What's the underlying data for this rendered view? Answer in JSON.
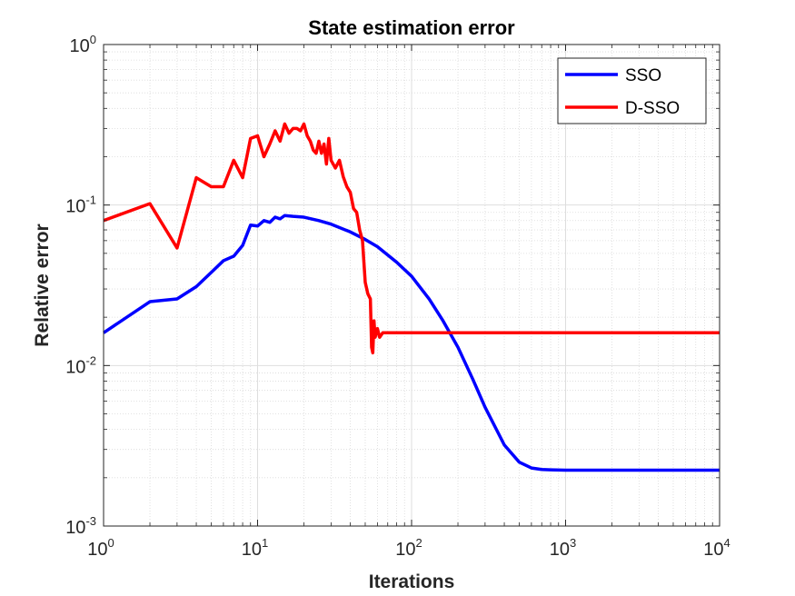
{
  "chart_data": {
    "type": "line",
    "title": "State estimation error",
    "xlabel": "Iterations",
    "ylabel": "Relative error",
    "xscale": "log",
    "yscale": "log",
    "xlim": [
      1,
      10000
    ],
    "ylim": [
      0.001,
      1
    ],
    "x_ticks": [
      {
        "base": "10",
        "exp": "0",
        "value": 1
      },
      {
        "base": "10",
        "exp": "1",
        "value": 10
      },
      {
        "base": "10",
        "exp": "2",
        "value": 100
      },
      {
        "base": "10",
        "exp": "3",
        "value": 1000
      },
      {
        "base": "10",
        "exp": "4",
        "value": 10000
      }
    ],
    "y_ticks": [
      {
        "base": "10",
        "exp": "-3",
        "value": 0.001
      },
      {
        "base": "10",
        "exp": "-2",
        "value": 0.01
      },
      {
        "base": "10",
        "exp": "-1",
        "value": 0.1
      },
      {
        "base": "10",
        "exp": "0",
        "value": 1
      }
    ],
    "grid": true,
    "minor_grid": true,
    "legend_position": "top-right",
    "series": [
      {
        "name": "SSO",
        "color": "#0000ff",
        "x": [
          1,
          2,
          3,
          4,
          5,
          6,
          7,
          8,
          9,
          10,
          11,
          12,
          13,
          14,
          15,
          17,
          20,
          25,
          30,
          40,
          50,
          60,
          80,
          100,
          130,
          160,
          200,
          250,
          300,
          400,
          500,
          600,
          700,
          800,
          1000,
          2000,
          5000,
          10000
        ],
        "y": [
          0.016,
          0.025,
          0.026,
          0.031,
          0.038,
          0.045,
          0.048,
          0.056,
          0.075,
          0.074,
          0.08,
          0.078,
          0.084,
          0.082,
          0.086,
          0.085,
          0.084,
          0.08,
          0.076,
          0.068,
          0.061,
          0.055,
          0.044,
          0.036,
          0.026,
          0.019,
          0.013,
          0.0082,
          0.0055,
          0.0032,
          0.0025,
          0.0023,
          0.00225,
          0.00224,
          0.00223,
          0.00223,
          0.00223,
          0.00223
        ]
      },
      {
        "name": "D-SSO",
        "color": "#ff0000",
        "x": [
          1,
          2,
          3,
          4,
          5,
          6,
          7,
          8,
          9,
          10,
          11,
          12,
          13,
          14,
          15,
          16,
          17,
          18,
          19,
          20,
          21,
          22,
          23,
          24,
          25,
          26,
          27,
          28,
          29,
          30,
          32,
          34,
          36,
          38,
          40,
          42,
          44,
          46,
          48,
          50,
          52,
          54,
          55,
          56,
          57,
          58,
          60,
          62,
          65,
          70,
          80,
          100,
          1000,
          10000
        ],
        "y": [
          0.08,
          0.102,
          0.054,
          0.148,
          0.13,
          0.13,
          0.19,
          0.148,
          0.26,
          0.27,
          0.2,
          0.24,
          0.29,
          0.25,
          0.32,
          0.28,
          0.3,
          0.3,
          0.29,
          0.32,
          0.27,
          0.25,
          0.22,
          0.21,
          0.25,
          0.21,
          0.24,
          0.18,
          0.26,
          0.19,
          0.17,
          0.19,
          0.15,
          0.13,
          0.12,
          0.095,
          0.09,
          0.07,
          0.06,
          0.033,
          0.028,
          0.026,
          0.013,
          0.012,
          0.019,
          0.015,
          0.017,
          0.015,
          0.016,
          0.016,
          0.016,
          0.016,
          0.016,
          0.016
        ]
      }
    ]
  }
}
